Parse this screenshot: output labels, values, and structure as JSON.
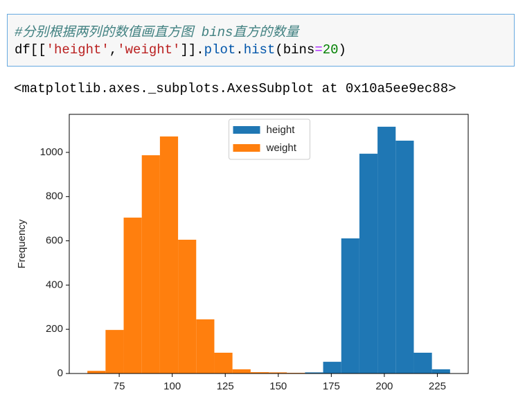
{
  "cell": {
    "comment": "#分别根据两列的数值画直方图 bins直方的数量",
    "code_tokens": [
      "df[[",
      "'height'",
      ",",
      "'weight'",
      "]].",
      "plot",
      ".",
      "hist",
      "(bins",
      "=",
      "20",
      ")"
    ]
  },
  "output": "<matplotlib.axes._subplots.AxesSubplot at 0x10a5ee9ec88>",
  "chart_data": {
    "type": "histogram",
    "ylabel": "Frequency",
    "bins": [
      60,
      68.55,
      77.1,
      85.65,
      94.2,
      102.75,
      111.3,
      119.85,
      128.4,
      136.95,
      145.5,
      154.05,
      162.6,
      171.15,
      179.7,
      188.25,
      196.8,
      205.35,
      213.9,
      222.45,
      231
    ],
    "series": [
      {
        "name": "height",
        "color": "#1f77b4",
        "values": [
          0,
          0,
          0,
          0,
          0,
          0,
          0,
          0,
          0,
          0,
          0,
          0,
          5,
          53,
          611,
          994,
          1116,
          1053,
          94,
          19
        ]
      },
      {
        "name": "weight",
        "color": "#ff7f0e",
        "values": [
          12,
          197,
          705,
          987,
          1072,
          605,
          245,
          94,
          19,
          6,
          5,
          3,
          0,
          0,
          0,
          0,
          0,
          0,
          0,
          0
        ]
      }
    ],
    "xlim": [
      51.45,
      239.55
    ],
    "ylim": [
      0,
      1172
    ],
    "xticks": [
      75,
      100,
      125,
      150,
      175,
      200,
      225
    ],
    "yticks": [
      0,
      200,
      400,
      600,
      800,
      1000
    ],
    "legend": "upper center"
  }
}
